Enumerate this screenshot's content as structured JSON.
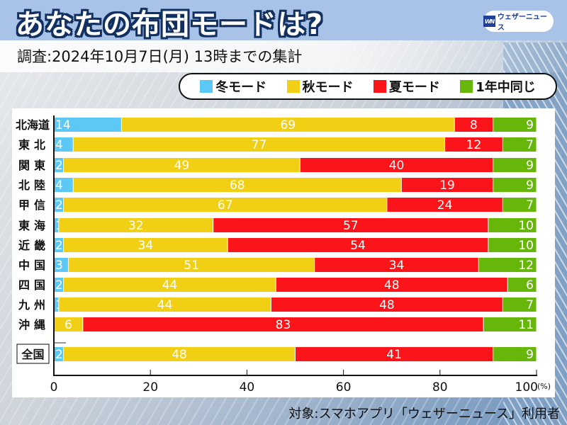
{
  "header": {
    "title": "あなたの布団モードは?",
    "subtitle": "調査:2024年10月7日(月) 13時までの集計",
    "logo_mark": "WN",
    "logo_text": "ウェザーニュース"
  },
  "footer": {
    "note": "対象:スマホアプリ「ウェザーニュース」利用者"
  },
  "chart_data": {
    "type": "bar",
    "orientation": "horizontal",
    "stacked": true,
    "title": "あなたの布団モードは?",
    "xlabel": "",
    "xunit": "(%)",
    "xlim": [
      0,
      100
    ],
    "xticks": [
      0,
      20,
      40,
      60,
      80,
      100
    ],
    "legend_position": "top-right",
    "categories": [
      "北海道",
      "東北",
      "関東",
      "北陸",
      "甲信",
      "東海",
      "近畿",
      "中国",
      "四国",
      "九州",
      "沖縄",
      "全国"
    ],
    "highlighted_category": "全国",
    "series": [
      {
        "name": "冬モード",
        "color": "#5bc8f5",
        "values": [
          14,
          4,
          2,
          4,
          2,
          1,
          2,
          3,
          2,
          1,
          0,
          2
        ]
      },
      {
        "name": "秋モード",
        "color": "#f0cf14",
        "values": [
          69,
          77,
          49,
          68,
          67,
          32,
          34,
          51,
          44,
          44,
          6,
          48
        ]
      },
      {
        "name": "夏モード",
        "color": "#fb1419",
        "values": [
          8,
          12,
          40,
          19,
          24,
          57,
          54,
          34,
          48,
          48,
          83,
          41
        ]
      },
      {
        "name": "1年中同じ",
        "color": "#66b70a",
        "values": [
          9,
          7,
          9,
          9,
          7,
          10,
          10,
          12,
          6,
          7,
          11,
          9
        ]
      }
    ]
  }
}
